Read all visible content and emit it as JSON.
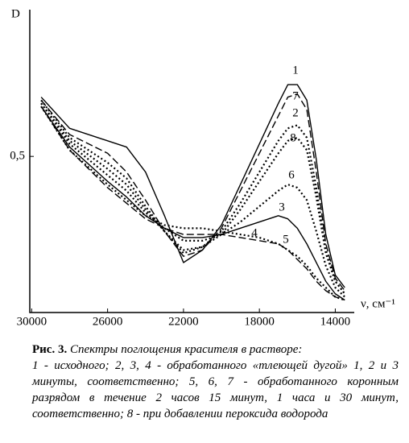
{
  "chart_data": {
    "type": "line",
    "ylabel": "D",
    "xlabel": "ν, см⁻¹",
    "x": [
      29500,
      28000,
      26000,
      25000,
      24000,
      23000,
      22000,
      21000,
      20000,
      19000,
      18000,
      17000,
      16500,
      16000,
      15500,
      15000,
      14500,
      14000,
      13500
    ],
    "xlim": [
      30100,
      13000
    ],
    "xticks": [
      30000,
      26000,
      22000,
      18000,
      14000
    ],
    "ylim": [
      0,
      0.97
    ],
    "yticks": [
      {
        "value": 0.5,
        "label": "0,5"
      }
    ],
    "series": [
      {
        "name": "1",
        "color": "#000000",
        "dash": "solid",
        "values": [
          0.69,
          0.59,
          0.55,
          0.53,
          0.45,
          0.31,
          0.16,
          0.2,
          0.28,
          0.41,
          0.54,
          0.67,
          0.73,
          0.73,
          0.68,
          0.49,
          0.25,
          0.12,
          0.08
        ]
      },
      {
        "name": "7",
        "color": "#000000",
        "dash": "dashed",
        "values": [
          0.68,
          0.57,
          0.51,
          0.45,
          0.36,
          0.26,
          0.18,
          0.2,
          0.27,
          0.39,
          0.51,
          0.63,
          0.69,
          0.7,
          0.65,
          0.45,
          0.22,
          0.11,
          0.07
        ]
      },
      {
        "name": "2",
        "color": "#000000",
        "dash": "dotted",
        "values": [
          0.68,
          0.56,
          0.48,
          0.43,
          0.34,
          0.26,
          0.19,
          0.21,
          0.26,
          0.35,
          0.45,
          0.55,
          0.59,
          0.6,
          0.56,
          0.4,
          0.2,
          0.1,
          0.06
        ]
      },
      {
        "name": "8",
        "color": "#000000",
        "dash": "dotted",
        "values": [
          0.67,
          0.55,
          0.46,
          0.41,
          0.33,
          0.26,
          0.2,
          0.21,
          0.25,
          0.33,
          0.42,
          0.51,
          0.55,
          0.56,
          0.52,
          0.37,
          0.19,
          0.1,
          0.06
        ]
      },
      {
        "name": "6",
        "color": "#000000",
        "dash": "dotted",
        "values": [
          0.67,
          0.54,
          0.44,
          0.39,
          0.32,
          0.27,
          0.23,
          0.23,
          0.25,
          0.29,
          0.34,
          0.39,
          0.41,
          0.4,
          0.36,
          0.26,
          0.15,
          0.08,
          0.05
        ]
      },
      {
        "name": "3",
        "color": "#000000",
        "dash": "solid",
        "values": [
          0.66,
          0.53,
          0.42,
          0.37,
          0.31,
          0.27,
          0.24,
          0.24,
          0.25,
          0.27,
          0.29,
          0.31,
          0.3,
          0.27,
          0.22,
          0.16,
          0.1,
          0.06,
          0.04
        ]
      },
      {
        "name": "5",
        "color": "#000000",
        "dash": "dashed",
        "values": [
          0.66,
          0.52,
          0.4,
          0.35,
          0.3,
          0.27,
          0.25,
          0.25,
          0.25,
          0.24,
          0.23,
          0.22,
          0.2,
          0.17,
          0.14,
          0.1,
          0.07,
          0.05,
          0.04
        ]
      },
      {
        "name": "4",
        "color": "#000000",
        "dash": "dotted",
        "values": [
          0.66,
          0.52,
          0.41,
          0.36,
          0.31,
          0.28,
          0.27,
          0.27,
          0.26,
          0.25,
          0.24,
          0.22,
          0.2,
          0.18,
          0.15,
          0.11,
          0.08,
          0.05,
          0.04
        ]
      }
    ]
  },
  "caption": {
    "label": "Рис. 3.",
    "title": "Спектры поглощения красителя в растворе:",
    "text": "1 - исходного; 2, 3, 4 - обработанного «тлеющей дугой» 1, 2 и 3 минуты, соответственно; 5, 6, 7 - обработанного коронным разрядом в течение 2 часов 15 минут, 1 часа и 30 минут, соответственно; 8 - при добавлении пероксида водорода"
  }
}
